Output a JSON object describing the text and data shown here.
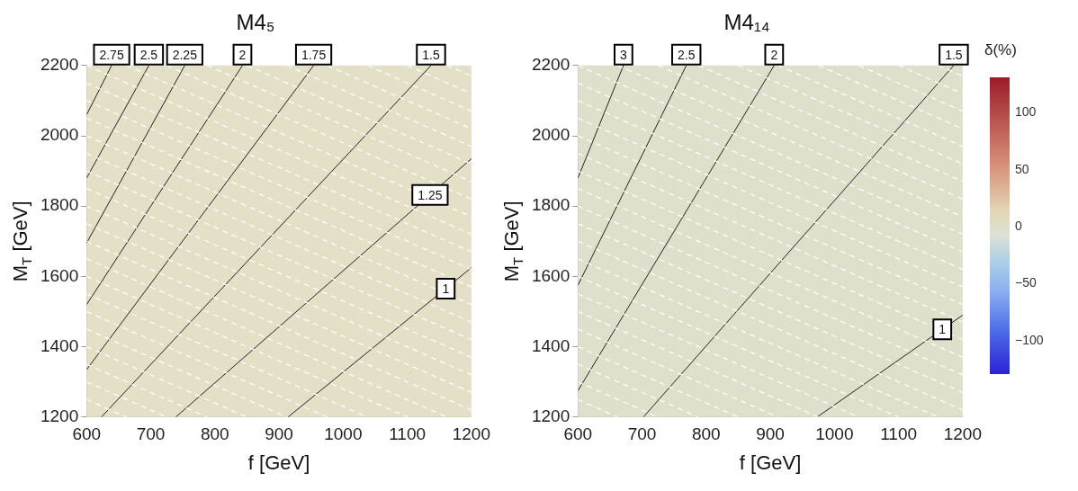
{
  "chart_data": [
    {
      "type": "line",
      "title": "M4₅",
      "xlabel": "f [GeV]",
      "ylabel": "M$_{T}$ [GeV]",
      "xlim": [
        600,
        1200
      ],
      "ylim": [
        1200,
        2200
      ],
      "xticks": [
        600,
        700,
        800,
        900,
        1000,
        1100,
        1200
      ],
      "yticks": [
        1200,
        1400,
        1600,
        1800,
        2000,
        2200
      ],
      "marker": "none",
      "series": [
        {
          "color": "#ffffff",
          "line_style": "dashed",
          "x": [
            600,
            662
          ],
          "values": [
            1250,
            1200
          ]
        },
        {
          "color": "#ffffff",
          "line_style": "dashed",
          "x": [
            600,
            725
          ],
          "values": [
            1300,
            1200
          ]
        },
        {
          "color": "#ffffff",
          "line_style": "dashed",
          "x": [
            600,
            788
          ],
          "values": [
            1350,
            1200
          ]
        },
        {
          "color": "#ffffff",
          "line_style": "dashed",
          "x": [
            600,
            850
          ],
          "values": [
            1400,
            1200
          ]
        },
        {
          "color": "#ffffff",
          "line_style": "dashed",
          "x": [
            600,
            912
          ],
          "values": [
            1450,
            1200
          ]
        },
        {
          "color": "#ffffff",
          "line_style": "dashed",
          "x": [
            600,
            975
          ],
          "values": [
            1500,
            1200
          ]
        },
        {
          "color": "#ffffff",
          "line_style": "dashed",
          "x": [
            600,
            1038
          ],
          "values": [
            1550,
            1200
          ]
        },
        {
          "color": "#ffffff",
          "line_style": "dashed",
          "x": [
            600,
            1100
          ],
          "values": [
            1600,
            1200
          ]
        },
        {
          "color": "#ffffff",
          "line_style": "dashed",
          "x": [
            600,
            1162
          ],
          "values": [
            1650,
            1200
          ]
        },
        {
          "color": "#ffffff",
          "line_style": "dashed",
          "x": [
            600,
            1200
          ],
          "values": [
            1700,
            1220
          ]
        },
        {
          "color": "#ffffff",
          "line_style": "dashed",
          "x": [
            600,
            1200
          ],
          "values": [
            1750,
            1270
          ]
        },
        {
          "color": "#ffffff",
          "line_style": "dashed",
          "x": [
            600,
            1200
          ],
          "values": [
            1800,
            1320
          ]
        },
        {
          "color": "#ffffff",
          "line_style": "dashed",
          "x": [
            600,
            1200
          ],
          "values": [
            1850,
            1370
          ]
        },
        {
          "color": "#ffffff",
          "line_style": "dashed",
          "x": [
            600,
            1200
          ],
          "values": [
            1900,
            1420
          ]
        },
        {
          "color": "#ffffff",
          "line_style": "dashed",
          "x": [
            600,
            1200
          ],
          "values": [
            1950,
            1470
          ]
        },
        {
          "color": "#ffffff",
          "line_style": "dashed",
          "x": [
            600,
            1200
          ],
          "values": [
            2000,
            1520
          ]
        },
        {
          "color": "#ffffff",
          "line_style": "dashed",
          "x": [
            600,
            1200
          ],
          "values": [
            2050,
            1570
          ]
        },
        {
          "color": "#ffffff",
          "line_style": "dashed",
          "x": [
            600,
            1200
          ],
          "values": [
            2100,
            1620
          ]
        },
        {
          "color": "#ffffff",
          "line_style": "dashed",
          "x": [
            600,
            1200
          ],
          "values": [
            2150,
            1670
          ]
        },
        {
          "color": "#ffffff",
          "line_style": "dashed",
          "x": [
            600,
            1200
          ],
          "values": [
            2200,
            1720
          ]
        },
        {
          "color": "#ffffff",
          "line_style": "dashed",
          "x": [
            662,
            1200
          ],
          "values": [
            2200,
            1770
          ]
        },
        {
          "color": "#ffffff",
          "line_style": "dashed",
          "x": [
            725,
            1200
          ],
          "values": [
            2200,
            1820
          ]
        },
        {
          "color": "#ffffff",
          "line_style": "dashed",
          "x": [
            788,
            1200
          ],
          "values": [
            2200,
            1870
          ]
        },
        {
          "color": "#ffffff",
          "line_style": "dashed",
          "x": [
            850,
            1200
          ],
          "values": [
            2200,
            1920
          ]
        },
        {
          "color": "#ffffff",
          "line_style": "dashed",
          "x": [
            912,
            1200
          ],
          "values": [
            2200,
            1970
          ]
        },
        {
          "color": "#ffffff",
          "line_style": "dashed",
          "x": [
            975,
            1200
          ],
          "values": [
            2200,
            2020
          ]
        },
        {
          "color": "#ffffff",
          "line_style": "dashed",
          "x": [
            1038,
            1200
          ],
          "values": [
            2200,
            2070
          ]
        },
        {
          "color": "#ffffff",
          "line_style": "dashed",
          "x": [
            1100,
            1200
          ],
          "values": [
            2200,
            2120
          ]
        },
        {
          "color": "#ffffff",
          "line_style": "dashed",
          "x": [
            1162,
            1200
          ],
          "values": [
            2200,
            2170
          ]
        },
        {
          "name": "2.75",
          "color": "#222222",
          "x": [
            600,
            639
          ],
          "values": [
            2060,
            2200
          ]
        },
        {
          "name": "2.5",
          "color": "#222222",
          "x": [
            600,
            697
          ],
          "values": [
            1880,
            2200
          ]
        },
        {
          "name": "2.25",
          "color": "#222222",
          "x": [
            600,
            753
          ],
          "values": [
            1695,
            2200
          ]
        },
        {
          "name": "2",
          "color": "#222222",
          "x": [
            600,
            843
          ],
          "values": [
            1520,
            2200
          ]
        },
        {
          "name": "1.75",
          "color": "#222222",
          "x": [
            600,
            954
          ],
          "values": [
            1335,
            2200
          ]
        },
        {
          "name": "1.5",
          "color": "#222222",
          "x": [
            623,
            1137
          ],
          "values": [
            1200,
            2200
          ]
        },
        {
          "name": "1.25",
          "color": "#222222",
          "x": [
            739,
            1200
          ],
          "values": [
            1200,
            1935
          ]
        },
        {
          "name": "1",
          "color": "#222222",
          "x": [
            914,
            1200
          ],
          "values": [
            1200,
            1625
          ]
        }
      ]
    },
    {
      "type": "line",
      "title": "M4₁₄",
      "xlabel": "f [GeV]",
      "ylabel": "M$_{T}$ [GeV]",
      "xlim": [
        600,
        1200
      ],
      "ylim": [
        1200,
        2200
      ],
      "xticks": [
        600,
        700,
        800,
        900,
        1000,
        1100,
        1200
      ],
      "yticks": [
        1200,
        1400,
        1600,
        1800,
        2000,
        2200
      ],
      "marker": "none",
      "clabel": "δ(%)",
      "clim": [
        -130,
        130
      ],
      "cticks": [
        -100,
        -50,
        0,
        50,
        100
      ],
      "series": [
        {
          "color": "#ffffff",
          "line_style": "dashed",
          "x": [
            600,
            662
          ],
          "values": [
            1250,
            1200
          ]
        },
        {
          "color": "#ffffff",
          "line_style": "dashed",
          "x": [
            600,
            725
          ],
          "values": [
            1300,
            1200
          ]
        },
        {
          "color": "#ffffff",
          "line_style": "dashed",
          "x": [
            600,
            788
          ],
          "values": [
            1350,
            1200
          ]
        },
        {
          "color": "#ffffff",
          "line_style": "dashed",
          "x": [
            600,
            850
          ],
          "values": [
            1400,
            1200
          ]
        },
        {
          "color": "#ffffff",
          "line_style": "dashed",
          "x": [
            600,
            912
          ],
          "values": [
            1450,
            1200
          ]
        },
        {
          "color": "#ffffff",
          "line_style": "dashed",
          "x": [
            600,
            975
          ],
          "values": [
            1500,
            1200
          ]
        },
        {
          "color": "#ffffff",
          "line_style": "dashed",
          "x": [
            600,
            1038
          ],
          "values": [
            1550,
            1200
          ]
        },
        {
          "color": "#ffffff",
          "line_style": "dashed",
          "x": [
            600,
            1100
          ],
          "values": [
            1600,
            1200
          ]
        },
        {
          "color": "#ffffff",
          "line_style": "dashed",
          "x": [
            600,
            1162
          ],
          "values": [
            1650,
            1200
          ]
        },
        {
          "color": "#ffffff",
          "line_style": "dashed",
          "x": [
            600,
            1200
          ],
          "values": [
            1700,
            1220
          ]
        },
        {
          "color": "#ffffff",
          "line_style": "dashed",
          "x": [
            600,
            1200
          ],
          "values": [
            1750,
            1270
          ]
        },
        {
          "color": "#ffffff",
          "line_style": "dashed",
          "x": [
            600,
            1200
          ],
          "values": [
            1800,
            1320
          ]
        },
        {
          "color": "#ffffff",
          "line_style": "dashed",
          "x": [
            600,
            1200
          ],
          "values": [
            1850,
            1370
          ]
        },
        {
          "color": "#ffffff",
          "line_style": "dashed",
          "x": [
            600,
            1200
          ],
          "values": [
            1900,
            1420
          ]
        },
        {
          "color": "#ffffff",
          "line_style": "dashed",
          "x": [
            600,
            1200
          ],
          "values": [
            1950,
            1470
          ]
        },
        {
          "color": "#ffffff",
          "line_style": "dashed",
          "x": [
            600,
            1200
          ],
          "values": [
            2000,
            1520
          ]
        },
        {
          "color": "#ffffff",
          "line_style": "dashed",
          "x": [
            600,
            1200
          ],
          "values": [
            2050,
            1570
          ]
        },
        {
          "color": "#ffffff",
          "line_style": "dashed",
          "x": [
            600,
            1200
          ],
          "values": [
            2100,
            1620
          ]
        },
        {
          "color": "#ffffff",
          "line_style": "dashed",
          "x": [
            600,
            1200
          ],
          "values": [
            2150,
            1670
          ]
        },
        {
          "color": "#ffffff",
          "line_style": "dashed",
          "x": [
            600,
            1200
          ],
          "values": [
            2200,
            1720
          ]
        },
        {
          "color": "#ffffff",
          "line_style": "dashed",
          "x": [
            662,
            1200
          ],
          "values": [
            2200,
            1770
          ]
        },
        {
          "color": "#ffffff",
          "line_style": "dashed",
          "x": [
            725,
            1200
          ],
          "values": [
            2200,
            1820
          ]
        },
        {
          "color": "#ffffff",
          "line_style": "dashed",
          "x": [
            788,
            1200
          ],
          "values": [
            2200,
            1870
          ]
        },
        {
          "color": "#ffffff",
          "line_style": "dashed",
          "x": [
            850,
            1200
          ],
          "values": [
            2200,
            1920
          ]
        },
        {
          "color": "#ffffff",
          "line_style": "dashed",
          "x": [
            912,
            1200
          ],
          "values": [
            2200,
            1970
          ]
        },
        {
          "color": "#ffffff",
          "line_style": "dashed",
          "x": [
            975,
            1200
          ],
          "values": [
            2200,
            2020
          ]
        },
        {
          "color": "#ffffff",
          "line_style": "dashed",
          "x": [
            1038,
            1200
          ],
          "values": [
            2200,
            2070
          ]
        },
        {
          "color": "#ffffff",
          "line_style": "dashed",
          "x": [
            1100,
            1200
          ],
          "values": [
            2200,
            2120
          ]
        },
        {
          "color": "#ffffff",
          "line_style": "dashed",
          "x": [
            1162,
            1200
          ],
          "values": [
            2200,
            2170
          ]
        },
        {
          "name": "3",
          "color": "#222222",
          "x": [
            600,
            671
          ],
          "values": [
            1880,
            2200
          ]
        },
        {
          "name": "2.5",
          "color": "#222222",
          "x": [
            600,
            769
          ],
          "values": [
            1575,
            2200
          ]
        },
        {
          "name": "2",
          "color": "#222222",
          "x": [
            600,
            906
          ],
          "values": [
            1275,
            2200
          ]
        },
        {
          "name": "1.5",
          "color": "#222222",
          "x": [
            702,
            1186
          ],
          "values": [
            1200,
            2200
          ]
        },
        {
          "name": "1",
          "color": "#222222",
          "x": [
            973,
            1200
          ],
          "values": [
            1200,
            1490
          ]
        }
      ]
    }
  ]
}
